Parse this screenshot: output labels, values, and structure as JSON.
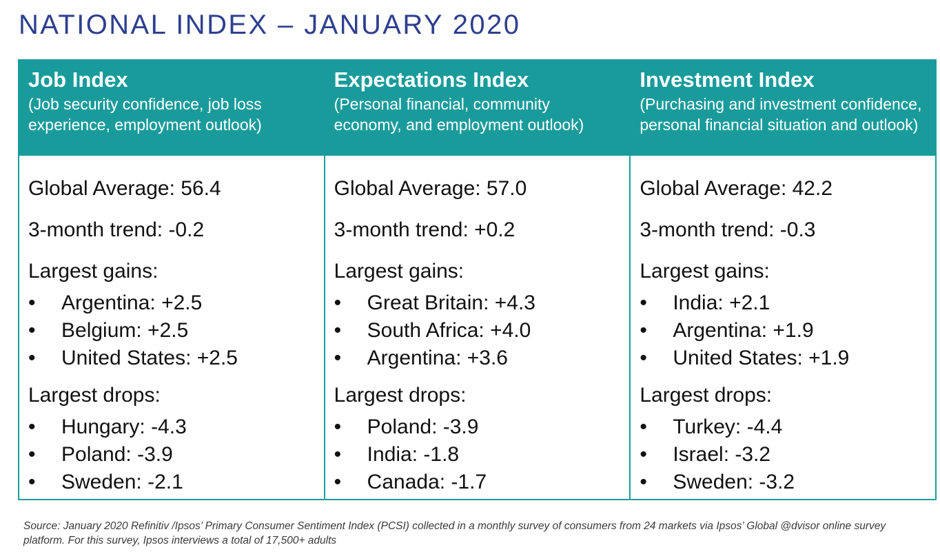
{
  "title": "NATIONAL INDEX – JANUARY 2020",
  "columns": [
    {
      "heading": "Job Index",
      "description": "(Job security confidence, job loss experience, employment outlook)",
      "global_average": "Global Average: 56.4",
      "trend": "3-month trend: -0.2",
      "gains_label": "Largest gains:",
      "gains": [
        "Argentina: +2.5",
        "Belgium: +2.5",
        "United States: +2.5"
      ],
      "drops_label": "Largest drops:",
      "drops": [
        "Hungary: -4.3",
        "Poland: -3.9",
        "Sweden: -2.1"
      ]
    },
    {
      "heading": "Expectations Index",
      "description": "(Personal financial, community economy, and employment outlook)",
      "global_average": "Global Average: 57.0",
      "trend": "3-month trend: +0.2",
      "gains_label": "Largest gains:",
      "gains": [
        "Great Britain: +4.3",
        "South Africa: +4.0",
        "Argentina: +3.6"
      ],
      "drops_label": "Largest drops:",
      "drops": [
        "Poland: -3.9",
        "India: -1.8",
        "Canada: -1.7"
      ]
    },
    {
      "heading": "Investment Index",
      "description": "(Purchasing and investment confidence, personal financial situation and outlook)",
      "global_average": "Global Average: 42.2",
      "trend": "3-month trend: -0.3",
      "gains_label": "Largest gains:",
      "gains": [
        "India: +2.1",
        "Argentina: +1.9",
        "United States: +1.9"
      ],
      "drops_label": "Largest drops:",
      "drops": [
        "Turkey: -4.4",
        "Israel: -3.2",
        "Sweden: -3.2"
      ]
    }
  ],
  "bullet": "•",
  "source": "Source: January 2020 Refinitiv /Ipsos’ Primary Consumer Sentiment Index (PCSI) collected in a monthly survey of consumers from 24 markets via Ipsos’ Global @dvisor online survey platform. For this survey, Ipsos interviews a total of 17,500+ adults",
  "colors": {
    "title": "#2e3f8f",
    "teal": "#1a9b9b"
  }
}
